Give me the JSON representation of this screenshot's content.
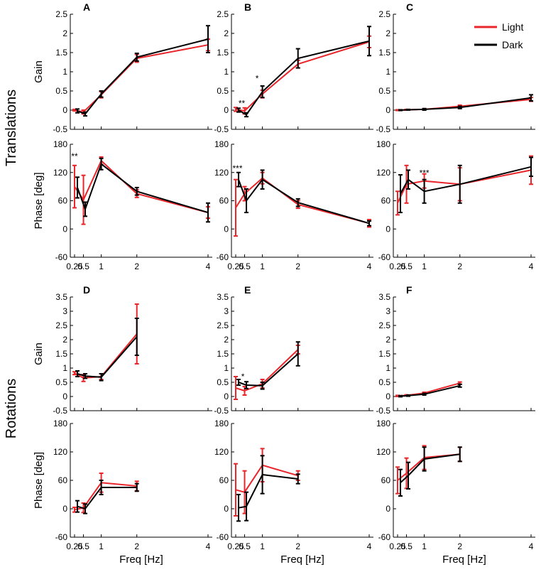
{
  "figure": {
    "row_labels": [
      "Translations",
      "Rotations"
    ],
    "legend": [
      {
        "label": "Light",
        "color": "#e8262b"
      },
      {
        "label": "Dark",
        "color": "#000000"
      }
    ]
  },
  "colors": {
    "light": "#e8262b",
    "dark": "#000000",
    "axis": "#000000"
  },
  "chart_data": [
    {
      "id": "A-gain",
      "type": "line",
      "panel_label": "A",
      "xlabel": "",
      "ylabel": "Gain",
      "xlim": [
        0.25,
        4.0
      ],
      "ylim": [
        -0.5,
        2.5
      ],
      "x_ticks": [
        "0.25",
        "0.5",
        "1",
        "2",
        "4"
      ],
      "y_ticks": [
        "-0.5",
        "0",
        "0.5",
        "1",
        "1.5",
        "2",
        "2.5"
      ],
      "series": [
        {
          "name": "Light",
          "x": [
            0.25,
            0.5,
            1,
            2,
            4
          ],
          "values": [
            0.0,
            -0.05,
            0.4,
            1.35,
            1.7
          ],
          "err": [
            0.02,
            0.05,
            0.08,
            0.1,
            0.15
          ]
        },
        {
          "name": "Dark",
          "x": [
            0.33,
            0.55,
            1,
            2,
            4
          ],
          "values": [
            -0.02,
            -0.1,
            0.42,
            1.38,
            1.85
          ],
          "err": [
            0.05,
            0.05,
            0.08,
            0.1,
            0.35
          ]
        }
      ],
      "annotations": []
    },
    {
      "id": "A-phase",
      "type": "line",
      "panel_label": "",
      "xlabel": "",
      "ylabel": "Phase [deg]",
      "xlim": [
        0.25,
        4.0
      ],
      "ylim": [
        -60,
        180
      ],
      "x_ticks": [
        "0.25",
        "0.5",
        "1",
        "2",
        "4"
      ],
      "y_ticks": [
        "-60",
        "0",
        "60",
        "120",
        "180"
      ],
      "series": [
        {
          "name": "Light",
          "x": [
            0.25,
            0.5,
            1,
            2,
            4
          ],
          "values": [
            90,
            62,
            145,
            75,
            35
          ],
          "err": [
            45,
            52,
            8,
            8,
            12
          ]
        },
        {
          "name": "Dark",
          "x": [
            0.33,
            0.55,
            1,
            2,
            4
          ],
          "values": [
            88,
            42,
            138,
            80,
            35
          ],
          "err": [
            22,
            15,
            12,
            8,
            20
          ]
        }
      ],
      "annotations": [
        {
          "text": "**",
          "x": 0.25,
          "y": 148
        }
      ]
    },
    {
      "id": "B-gain",
      "type": "line",
      "panel_label": "B",
      "xlabel": "",
      "ylabel": "",
      "xlim": [
        0.25,
        4.0
      ],
      "ylim": [
        -0.5,
        2.5
      ],
      "x_ticks": [
        "0.25",
        "0.5",
        "1",
        "2",
        "4"
      ],
      "y_ticks": [
        "-0.5",
        "0",
        "0.5",
        "1",
        "1.5",
        "2",
        "2.5"
      ],
      "series": [
        {
          "name": "Light",
          "x": [
            0.25,
            0.5,
            1,
            2,
            4
          ],
          "values": [
            0.02,
            -0.02,
            0.42,
            1.2,
            1.78
          ],
          "err": [
            0.05,
            0.08,
            0.1,
            0.1,
            0.15
          ]
        },
        {
          "name": "Dark",
          "x": [
            0.33,
            0.55,
            1,
            2,
            4
          ],
          "values": [
            0.0,
            -0.12,
            0.48,
            1.35,
            1.8
          ],
          "err": [
            0.05,
            0.05,
            0.15,
            0.25,
            0.38
          ]
        }
      ],
      "annotations": [
        {
          "text": "**",
          "x": 0.42,
          "y": 0.1
        },
        {
          "text": "*",
          "x": 0.85,
          "y": 0.75
        }
      ]
    },
    {
      "id": "B-phase",
      "type": "line",
      "panel_label": "",
      "xlabel": "",
      "ylabel": "",
      "xlim": [
        0.25,
        4.0
      ],
      "ylim": [
        -60,
        180
      ],
      "x_ticks": [
        "0.25",
        "0.5",
        "1",
        "2",
        "4"
      ],
      "y_ticks": [
        "-60",
        "0",
        "60",
        "120",
        "180"
      ],
      "series": [
        {
          "name": "Light",
          "x": [
            0.25,
            0.5,
            1,
            2,
            4
          ],
          "values": [
            45,
            75,
            108,
            52,
            12
          ],
          "err": [
            60,
            15,
            12,
            8,
            8
          ]
        },
        {
          "name": "Dark",
          "x": [
            0.33,
            0.55,
            1,
            2,
            4
          ],
          "values": [
            105,
            60,
            105,
            56,
            12
          ],
          "err": [
            15,
            25,
            20,
            8,
            5
          ]
        }
      ],
      "annotations": [
        {
          "text": "***",
          "x": 0.3,
          "y": 123
        }
      ]
    },
    {
      "id": "C-gain",
      "type": "line",
      "panel_label": "C",
      "xlabel": "",
      "ylabel": "",
      "xlim": [
        0.25,
        4.0
      ],
      "ylim": [
        -0.5,
        2.5
      ],
      "x_ticks": [
        "0.25",
        "0.5",
        "1",
        "2",
        "4"
      ],
      "y_ticks": [
        "-0.5",
        "0",
        "0.5",
        "1",
        "1.5",
        "2",
        "2.5"
      ],
      "series": [
        {
          "name": "Light",
          "x": [
            0.25,
            0.5,
            1,
            2,
            4
          ],
          "values": [
            0.0,
            0.01,
            0.02,
            0.1,
            0.28
          ],
          "err": [
            0.01,
            0.01,
            0.02,
            0.03,
            0.05
          ]
        },
        {
          "name": "Dark",
          "x": [
            0.33,
            0.55,
            1,
            2,
            4
          ],
          "values": [
            0.0,
            0.01,
            0.02,
            0.07,
            0.32
          ],
          "err": [
            0.01,
            0.01,
            0.02,
            0.03,
            0.08
          ]
        }
      ],
      "annotations": []
    },
    {
      "id": "C-phase",
      "type": "line",
      "panel_label": "",
      "xlabel": "",
      "ylabel": "",
      "xlim": [
        0.25,
        4.0
      ],
      "ylim": [
        -60,
        180
      ],
      "x_ticks": [
        "0.25",
        "0.5",
        "1",
        "2",
        "4"
      ],
      "y_ticks": [
        "-60",
        "0",
        "60",
        "120",
        "180"
      ],
      "series": [
        {
          "name": "Light",
          "x": [
            0.25,
            0.5,
            1,
            2,
            4
          ],
          "values": [
            55,
            95,
            102,
            95,
            125
          ],
          "err": [
            25,
            40,
            15,
            35,
            30
          ]
        },
        {
          "name": "Dark",
          "x": [
            0.33,
            0.55,
            1,
            2,
            4
          ],
          "values": [
            75,
            105,
            80,
            95,
            132
          ],
          "err": [
            40,
            20,
            25,
            40,
            20
          ]
        }
      ],
      "annotations": [
        {
          "text": "***",
          "x": 1.0,
          "y": 113
        }
      ]
    },
    {
      "id": "D-gain",
      "type": "line",
      "panel_label": "D",
      "xlabel": "",
      "ylabel": "Gain",
      "xlim": [
        0.25,
        4.0
      ],
      "ylim": [
        -0.5,
        3.5
      ],
      "x_ticks": [
        "0.25",
        "0.5",
        "1",
        "2",
        "4"
      ],
      "y_ticks": [
        "-0.5",
        "0",
        "0.5",
        "1",
        "1.5",
        "2",
        "2.5",
        "3",
        "3.5"
      ],
      "series": [
        {
          "name": "Light",
          "x": [
            0.25,
            0.5,
            1
          ],
          "values": [
            0.82,
            0.65,
            0.7
          ],
          "err": [
            0.05,
            0.12,
            0.1
          ],
          "x2": 2,
          "v2": 2.2,
          "e2": 1.05
        },
        {
          "name": "Dark",
          "x": [
            0.33,
            0.55,
            1,
            2
          ],
          "values": [
            0.8,
            0.72,
            0.68,
            2.1
          ],
          "err": [
            0.1,
            0.08,
            0.12,
            0.65
          ]
        }
      ],
      "annotations": []
    },
    {
      "id": "D-phase",
      "type": "line",
      "panel_label": "",
      "xlabel": "Freq [Hz]",
      "ylabel": "Phase [deg]",
      "xlim": [
        0.25,
        4.0
      ],
      "ylim": [
        -60,
        180
      ],
      "x_ticks": [
        "0.25",
        "0.5",
        "1",
        "2",
        "4"
      ],
      "y_ticks": [
        "-60",
        "0",
        "60",
        "120",
        "180"
      ],
      "series": [
        {
          "name": "Light",
          "x": [
            0.25,
            0.5,
            1,
            2
          ],
          "values": [
            -2,
            2,
            55,
            48
          ],
          "err": [
            5,
            10,
            20,
            10
          ]
        },
        {
          "name": "Dark",
          "x": [
            0.33,
            0.55,
            1,
            2
          ],
          "values": [
            5,
            0,
            45,
            45
          ],
          "err": [
            12,
            10,
            15,
            8
          ]
        }
      ],
      "annotations": []
    },
    {
      "id": "E-gain",
      "type": "line",
      "panel_label": "E",
      "xlabel": "",
      "ylabel": "",
      "xlim": [
        0.25,
        4.0
      ],
      "ylim": [
        -0.5,
        3.5
      ],
      "x_ticks": [
        "0.25",
        "0.5",
        "1",
        "2",
        "4"
      ],
      "y_ticks": [
        "-0.5",
        "0",
        "0.5",
        "1",
        "1.5",
        "2",
        "2.5",
        "3",
        "3.5"
      ],
      "series": [
        {
          "name": "Light",
          "x": [
            0.25,
            0.5,
            1,
            2
          ],
          "values": [
            0.3,
            0.2,
            0.45,
            1.65
          ],
          "err": [
            0.4,
            0.15,
            0.15,
            0.15
          ]
        },
        {
          "name": "Dark",
          "x": [
            0.33,
            0.55,
            1,
            2
          ],
          "values": [
            0.5,
            0.4,
            0.38,
            1.5
          ],
          "err": [
            0.1,
            0.12,
            0.12,
            0.42
          ]
        }
      ],
      "annotations": [
        {
          "text": "*",
          "x": 0.45,
          "y": 0.6
        }
      ]
    },
    {
      "id": "E-phase",
      "type": "line",
      "panel_label": "",
      "xlabel": "Freq [Hz]",
      "ylabel": "",
      "xlim": [
        0.25,
        4.0
      ],
      "ylim": [
        -60,
        180
      ],
      "x_ticks": [
        "0.25",
        "0.5",
        "1",
        "2",
        "4"
      ],
      "y_ticks": [
        "-60",
        "0",
        "60",
        "120",
        "180"
      ],
      "series": [
        {
          "name": "Light",
          "x": [
            0.25,
            0.5,
            1,
            2
          ],
          "values": [
            40,
            35,
            92,
            70
          ],
          "err": [
            55,
            45,
            35,
            10
          ]
        },
        {
          "name": "Dark",
          "x": [
            0.33,
            0.55,
            1,
            2
          ],
          "values": [
            2,
            5,
            72,
            63
          ],
          "err": [
            28,
            30,
            40,
            10
          ]
        }
      ],
      "annotations": []
    },
    {
      "id": "F-gain",
      "type": "line",
      "panel_label": "F",
      "xlabel": "",
      "ylabel": "",
      "xlim": [
        0.25,
        4.0
      ],
      "ylim": [
        -0.5,
        3.5
      ],
      "x_ticks": [
        "0.25",
        "0.5",
        "1",
        "2",
        "4"
      ],
      "y_ticks": [
        "-0.5",
        "0",
        "0.5",
        "1",
        "1.5",
        "2",
        "2.5",
        "3",
        "3.5"
      ],
      "series": [
        {
          "name": "Light",
          "x": [
            0.25,
            0.5,
            1,
            2
          ],
          "values": [
            0.02,
            0.04,
            0.12,
            0.47
          ],
          "err": [
            0.02,
            0.02,
            0.03,
            0.04
          ]
        },
        {
          "name": "Dark",
          "x": [
            0.33,
            0.55,
            1,
            2
          ],
          "values": [
            0.01,
            0.03,
            0.08,
            0.38
          ],
          "err": [
            0.02,
            0.02,
            0.03,
            0.05
          ]
        }
      ],
      "annotations": []
    },
    {
      "id": "F-phase",
      "type": "line",
      "panel_label": "",
      "xlabel": "Freq [Hz]",
      "ylabel": "",
      "xlim": [
        0.25,
        4.0
      ],
      "ylim": [
        -60,
        180
      ],
      "x_ticks": [
        "0.25",
        "0.5",
        "1",
        "2",
        "4"
      ],
      "y_ticks": [
        "-60",
        "0",
        "60",
        "120",
        "180"
      ],
      "series": [
        {
          "name": "Light",
          "x": [
            0.25,
            0.5,
            1,
            2
          ],
          "values": [
            60,
            75,
            108,
            115
          ],
          "err": [
            28,
            32,
            25,
            15
          ]
        },
        {
          "name": "Dark",
          "x": [
            0.33,
            0.55,
            1,
            2
          ],
          "values": [
            55,
            70,
            105,
            115
          ],
          "err": [
            28,
            28,
            25,
            15
          ]
        }
      ],
      "annotations": []
    }
  ]
}
